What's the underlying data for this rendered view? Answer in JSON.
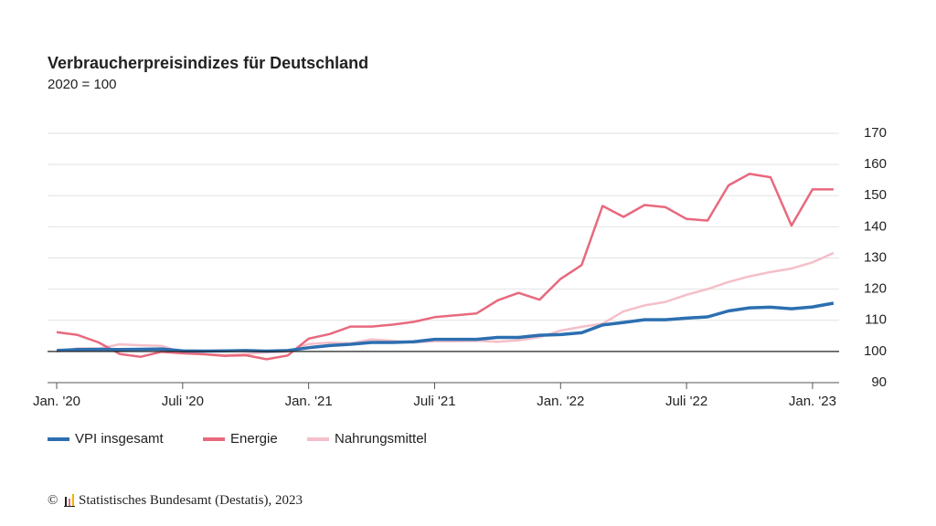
{
  "chart_data": {
    "type": "line",
    "title": "Verbraucherpreisindizes für Deutschland",
    "subtitle": "2020 = 100",
    "source": "© Statistisches Bundesamt (Destatis), 2023",
    "categories": [
      "Jan. '20",
      null,
      null,
      null,
      null,
      null,
      "Juli '20",
      null,
      null,
      null,
      null,
      null,
      "Jan. '21",
      null,
      null,
      null,
      null,
      null,
      "Juli '21",
      null,
      null,
      null,
      null,
      null,
      "Jan. '22",
      null,
      null,
      null,
      null,
      null,
      "Juli '22",
      null,
      null,
      null,
      null,
      null,
      "Jan. '23",
      null
    ],
    "series": [
      {
        "name": "VPI insgesamt",
        "color": "#2c6fb0",
        "width": 3.5,
        "values": [
          100.3,
          100.6,
          100.7,
          100.6,
          100.7,
          100.8,
          100.2,
          100.1,
          100.2,
          100.3,
          100.1,
          100.3,
          101.2,
          101.9,
          102.3,
          102.9,
          102.9,
          103.1,
          103.9,
          103.9,
          103.9,
          104.5,
          104.5,
          105.2,
          105.4,
          106.0,
          108.5,
          109.3,
          110.2,
          110.2,
          110.7,
          111.1,
          113.0,
          114.0,
          114.2,
          113.7,
          114.3,
          115.5
        ]
      },
      {
        "name": "Energie",
        "color": "#e8697d",
        "width": 2.5,
        "values": [
          106.2,
          105.3,
          102.9,
          99.2,
          98.3,
          99.9,
          99.4,
          99.1,
          98.6,
          98.8,
          97.5,
          98.7,
          104.1,
          105.6,
          108.0,
          108.0,
          108.6,
          109.5,
          111.0,
          111.6,
          112.2,
          116.4,
          118.8,
          116.6,
          123.3,
          127.7,
          146.7,
          143.2,
          147.0,
          146.3,
          142.5,
          142.0,
          153.3,
          157.0,
          155.9,
          140.4,
          152.0,
          152.0
        ]
      },
      {
        "name": "Nahrungsmittel",
        "color": "#f4bfc9",
        "width": 2.5,
        "values": [
          100.0,
          101.0,
          100.9,
          102.3,
          102.0,
          101.8,
          99.6,
          99.1,
          98.9,
          99.2,
          99.7,
          99.9,
          102.4,
          102.8,
          102.6,
          103.9,
          103.4,
          102.9,
          103.3,
          103.3,
          103.4,
          103.1,
          103.6,
          104.6,
          106.7,
          107.9,
          108.9,
          112.9,
          114.8,
          115.9,
          118.2,
          120.0,
          122.3,
          124.1,
          125.5,
          126.6,
          128.6,
          131.6
        ]
      }
    ],
    "ylim": [
      90,
      170
    ],
    "yticks": [
      90,
      100,
      110,
      120,
      130,
      140,
      150,
      160,
      170
    ],
    "baseline": 100,
    "grid": true,
    "legend": "bottom"
  }
}
